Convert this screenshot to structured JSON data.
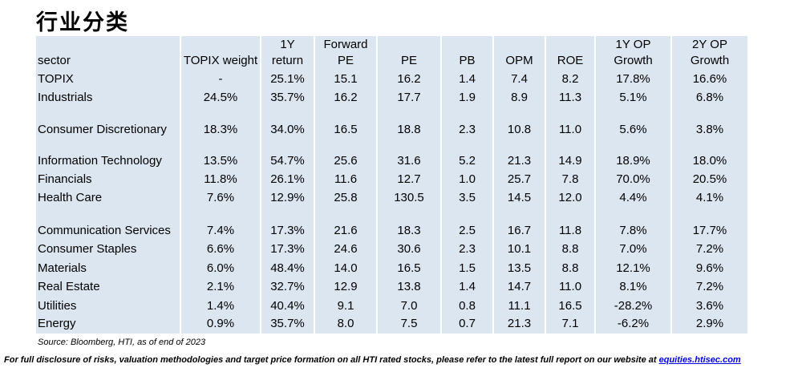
{
  "header": {
    "title": "行业分类"
  },
  "table": {
    "columns": [
      [
        "sector"
      ],
      [
        "TOPIX weight"
      ],
      [
        "1Y",
        "return"
      ],
      [
        "Forward",
        "PE"
      ],
      [
        "PE"
      ],
      [
        "PB"
      ],
      [
        "OPM"
      ],
      [
        "ROE"
      ],
      [
        "1Y OP",
        "Growth"
      ],
      [
        "2Y OP",
        "Growth"
      ]
    ],
    "rows": [
      [
        "TOPIX",
        "-",
        "25.1%",
        "15.1",
        "16.2",
        "1.4",
        "7.4",
        "8.2",
        "17.8%",
        "16.6%"
      ],
      [
        "Industrials",
        "24.5%",
        "35.7%",
        "16.2",
        "17.7",
        "1.9",
        "8.9",
        "11.3",
        "5.1%",
        "6.8%"
      ],
      [
        "Consumer Discretionary",
        "18.3%",
        "34.0%",
        "16.5",
        "18.8",
        "2.3",
        "10.8",
        "11.0",
        "5.6%",
        "3.8%"
      ],
      [
        "Information Technology",
        "13.5%",
        "54.7%",
        "25.6",
        "31.6",
        "5.2",
        "21.3",
        "14.9",
        "18.9%",
        "18.0%"
      ],
      [
        "Financials",
        "11.8%",
        "26.1%",
        "11.6",
        "12.7",
        "1.0",
        "25.7",
        "7.8",
        "70.0%",
        "20.5%"
      ],
      [
        "Health Care",
        "7.6%",
        "12.9%",
        "25.8",
        "130.5",
        "3.5",
        "14.5",
        "12.0",
        "4.4%",
        "4.1%"
      ],
      [
        "Communication Services",
        "7.4%",
        "17.3%",
        "21.6",
        "18.3",
        "2.5",
        "16.7",
        "11.8",
        "7.8%",
        "17.7%"
      ],
      [
        "Consumer Staples",
        "6.6%",
        "17.3%",
        "24.6",
        "30.6",
        "2.3",
        "10.1",
        "8.8",
        "7.0%",
        "7.2%"
      ],
      [
        "Materials",
        "6.0%",
        "48.4%",
        "14.0",
        "16.5",
        "1.5",
        "13.5",
        "8.8",
        "12.1%",
        "9.6%"
      ],
      [
        "Real Estate",
        "2.1%",
        "32.7%",
        "12.9",
        "13.8",
        "1.4",
        "14.7",
        "11.0",
        "8.1%",
        "7.2%"
      ],
      [
        "Utilities",
        "1.4%",
        "40.4%",
        "9.1",
        "7.0",
        "0.8",
        "11.1",
        "16.5",
        "-28.2%",
        "3.6%"
      ],
      [
        "Energy",
        "0.9%",
        "35.7%",
        "8.0",
        "7.5",
        "0.7",
        "21.3",
        "7.1",
        "-6.2%",
        "2.9%"
      ]
    ]
  },
  "footer": {
    "source": "Source: Bloomberg, HTI, as of end of 2023",
    "disclaimer": "For full disclosure of risks, valuation methodologies and target price formation on all HTI rated stocks, please refer to the latest full report on our website at ",
    "link": "equities.htisec.com"
  }
}
